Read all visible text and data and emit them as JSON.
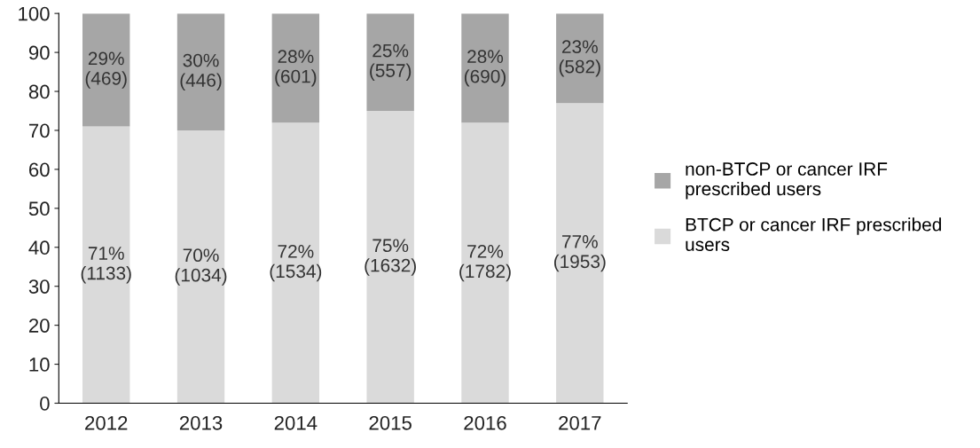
{
  "chart_data": {
    "type": "bar",
    "stacked": true,
    "categories": [
      "2012",
      "2013",
      "2014",
      "2015",
      "2016",
      "2017"
    ],
    "series": [
      {
        "name": "BTCP or cancer IRF prescribed\nusers",
        "color": "#dadada",
        "values": [
          71,
          70,
          72,
          75,
          72,
          77
        ],
        "value_labels": [
          "71%\n(1133)",
          "70%\n(1034)",
          "72%\n(1534)",
          "75%\n(1632)",
          "72%\n(1782)",
          "77%\n(1953)"
        ]
      },
      {
        "name": "non-BTCP or cancer IRF\nprescribed users",
        "color": "#a6a6a6",
        "values": [
          29,
          30,
          28,
          25,
          28,
          23
        ],
        "value_labels": [
          "29%\n(469)",
          "30%\n(446)",
          "28%\n(601)",
          "25%\n(557)",
          "28%\n(690)",
          "23%\n(582)"
        ]
      }
    ],
    "ylim": [
      0,
      100
    ],
    "yticks": [
      0,
      10,
      20,
      30,
      40,
      50,
      60,
      70,
      80,
      90,
      100
    ],
    "grid": false,
    "legend": "right"
  }
}
